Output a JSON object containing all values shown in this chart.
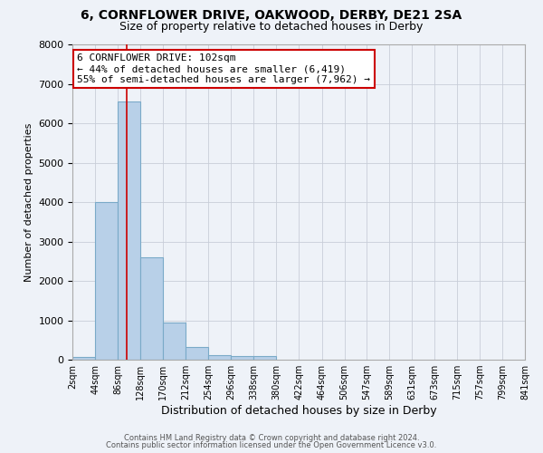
{
  "title": "6, CORNFLOWER DRIVE, OAKWOOD, DERBY, DE21 2SA",
  "subtitle": "Size of property relative to detached houses in Derby",
  "xlabel": "Distribution of detached houses by size in Derby",
  "ylabel": "Number of detached properties",
  "bar_color": "#b8d0e8",
  "bar_edge_color": "#7aaac8",
  "background_color": "#eef2f8",
  "grid_color": "#c8cdd8",
  "bin_edges": [
    2,
    44,
    86,
    128,
    170,
    212,
    254,
    296,
    338,
    380,
    422,
    464,
    506,
    547,
    589,
    631,
    673,
    715,
    757,
    799,
    841
  ],
  "bar_heights": [
    75,
    4000,
    6550,
    2600,
    950,
    330,
    120,
    100,
    100,
    0,
    0,
    0,
    0,
    0,
    0,
    0,
    0,
    0,
    0,
    0
  ],
  "property_size": 102,
  "red_line_color": "#cc0000",
  "annotation_line1": "6 CORNFLOWER DRIVE: 102sqm",
  "annotation_line2": "← 44% of detached houses are smaller (6,419)",
  "annotation_line3": "55% of semi-detached houses are larger (7,962) →",
  "annotation_box_color": "#ffffff",
  "annotation_border_color": "#cc0000",
  "tick_labels": [
    "2sqm",
    "44sqm",
    "86sqm",
    "128sqm",
    "170sqm",
    "212sqm",
    "254sqm",
    "296sqm",
    "338sqm",
    "380sqm",
    "422sqm",
    "464sqm",
    "506sqm",
    "547sqm",
    "589sqm",
    "631sqm",
    "673sqm",
    "715sqm",
    "757sqm",
    "799sqm",
    "841sqm"
  ],
  "ylim": [
    0,
    8000
  ],
  "yticks": [
    0,
    1000,
    2000,
    3000,
    4000,
    5000,
    6000,
    7000,
    8000
  ],
  "footer_line1": "Contains HM Land Registry data © Crown copyright and database right 2024.",
  "footer_line2": "Contains public sector information licensed under the Open Government Licence v3.0."
}
